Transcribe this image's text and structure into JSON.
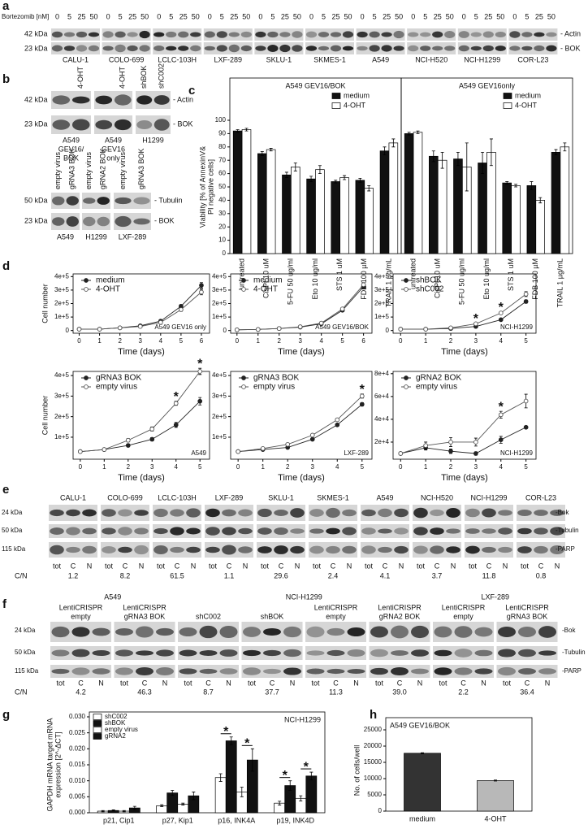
{
  "panel_labels": [
    "a",
    "b",
    "c",
    "d",
    "e",
    "f",
    "g",
    "h"
  ],
  "blot_a": {
    "treatment_label": "Bortezomib [nM]",
    "doses": [
      "0",
      "5",
      "25",
      "50"
    ],
    "size_markers": [
      "42 kDa",
      "23 kDa"
    ],
    "proteins": [
      "- Actin",
      "- BOK"
    ],
    "cell_lines": [
      "CALU-1",
      "COLO-699",
      "LCLC-103H",
      "LXF-289",
      "SKLU-1",
      "SKMES-1",
      "A549",
      "NCI-H520",
      "NCI-H1299",
      "COR-L23"
    ]
  },
  "blot_b": {
    "top": {
      "lanes": [
        null,
        "4-OHT",
        null,
        "4-OHT",
        "shBOK",
        "shC002"
      ],
      "size_markers": [
        "42 kDa",
        "23 kDa"
      ],
      "proteins": [
        "- Actin",
        "- BOK"
      ],
      "groups": [
        [
          "A549",
          "GEV16/",
          "BOK"
        ],
        [
          "A549",
          "GEV16",
          "only"
        ],
        [
          "H1299"
        ]
      ]
    },
    "bottom": {
      "lanes": [
        "empty virus",
        "gRNA3 BOK",
        "empty virus",
        "gRNA2 BOK",
        "empty virus",
        "gRNA3 BOK"
      ],
      "size_markers": [
        "50 kDa",
        "23 kDa"
      ],
      "proteins": [
        "- Tubulin",
        "- BOK"
      ],
      "groups": [
        "A549",
        "H1299",
        "LXF-289"
      ]
    }
  },
  "blot_e": {
    "size_markers": [
      "24 kDa",
      "50 kDa",
      "115 kDa"
    ],
    "proteins": [
      "-Bok",
      "-Tubulin",
      "-PARP"
    ],
    "cell_lines": [
      "CALU-1",
      "COLO-699",
      "LCLC-103H",
      "LXF-289",
      "SKLU-1",
      "SKMES-1",
      "A549",
      "NCI-H520",
      "NCI-H1299",
      "COR-L23"
    ],
    "fractions": [
      "tot",
      "C",
      "N"
    ],
    "ratio_label": "C/N",
    "ratios": [
      "1.2",
      "8.2",
      "61.5",
      "1.1",
      "29.6",
      "2.4",
      "4.1",
      "3.7",
      "11.8",
      "0.8"
    ]
  },
  "blot_f": {
    "size_markers": [
      "24 kDa",
      "50 kDa",
      "115 kDa"
    ],
    "proteins": [
      "-Bok",
      "-Tubulin",
      "-PARP"
    ],
    "headers": [
      "A549",
      "NCI-H1299",
      "LXF-289"
    ],
    "subgroups": [
      [
        "LentiCRISPR",
        "empty"
      ],
      [
        "LentiCRISPR",
        "gRNA3 BOK"
      ],
      [
        "shC002"
      ],
      [
        "shBOK"
      ],
      [
        "LentiCRISPR",
        "empty"
      ],
      [
        "LentiCRISPR",
        "gRNA2 BOK"
      ],
      [
        "LentiCRISPR",
        "empty"
      ],
      [
        "LentiCRISPR",
        "gRNA3 BOK"
      ]
    ],
    "fractions": [
      "tot",
      "C",
      "N"
    ],
    "ratio_label": "C/N",
    "ratios": [
      "4.2",
      "46.3",
      "8.7",
      "37.7",
      "11.3",
      "39.0",
      "2.2",
      "36.4"
    ]
  },
  "chart_data": [
    {
      "type": "bar",
      "title": "A549 GEV16/BOK",
      "y_label": [
        "Viability [% of AnnexinV&",
        "PI negative cells]"
      ],
      "categories": [
        "untreated",
        "CisPt 10 uM",
        "5-FU 50 ug/ml",
        "Eto 10 ug/ml",
        "STS 1 uM",
        "FDB 100 µM",
        "TRAIL 1 µg/mL"
      ],
      "series": [
        {
          "name": "medium",
          "color": "#111111",
          "values": [
            92,
            75,
            59,
            56,
            54,
            55,
            77
          ],
          "errors": [
            1,
            1.5,
            2,
            2,
            1,
            1.5,
            3
          ]
        },
        {
          "name": "4-OHT",
          "color": "#ffffff",
          "values": [
            93,
            78,
            65,
            63,
            57,
            49,
            83
          ],
          "errors": [
            1,
            1,
            3,
            3,
            1.5,
            2,
            3
          ]
        }
      ],
      "ylim": [
        0,
        100
      ],
      "yticks": [
        0,
        10,
        20,
        30,
        40,
        50,
        60,
        70,
        80,
        90,
        100
      ],
      "legend": "upper right"
    },
    {
      "type": "bar",
      "title": "A549 GEV16only",
      "categories": [
        "untreated",
        "CisPt 10 uM",
        "5-FU 50 ug/ml",
        "Eto 10 ug/ml",
        "STS 1 uM",
        "FDB 100 µM",
        "TRAIL 1 µg/mL"
      ],
      "series": [
        {
          "name": "medium",
          "color": "#111111",
          "values": [
            90,
            73,
            71,
            68,
            53,
            51,
            76
          ],
          "errors": [
            1,
            4,
            5,
            8,
            1,
            3,
            2
          ]
        },
        {
          "name": "4-OHT",
          "color": "#ffffff",
          "values": [
            91,
            70,
            65,
            76,
            51,
            40,
            80
          ],
          "errors": [
            1,
            6,
            18,
            10,
            1,
            2,
            3
          ]
        }
      ],
      "ylim": [
        0,
        100
      ],
      "legend": "upper right"
    },
    {
      "type": "line",
      "y_label": "Cell number",
      "x_label": "Time (days)",
      "annotation": "A549 GEV16 only",
      "x": [
        0,
        1,
        2,
        3,
        4,
        5,
        6
      ],
      "series": [
        {
          "name": "medium",
          "color": "#222222",
          "marker": "filled",
          "values": [
            10000,
            10000,
            20000,
            35000,
            70000,
            180000,
            335000
          ],
          "errors": [
            2000,
            2000,
            3000,
            4000,
            6000,
            12000,
            20000
          ]
        },
        {
          "name": "4-OHT",
          "color": "#555555",
          "marker": "open",
          "values": [
            10000,
            10000,
            20000,
            30000,
            60000,
            155000,
            285000
          ],
          "errors": [
            2000,
            2000,
            3000,
            4000,
            6000,
            12000,
            20000
          ]
        }
      ],
      "xlim": [
        -0.3,
        6.4
      ],
      "ylim": [
        -20000,
        420000
      ],
      "xticks": [
        0,
        1,
        2,
        3,
        4,
        5,
        6
      ],
      "yticks": [
        0,
        {
          "value": 100000,
          "label": "1e+5"
        },
        {
          "value": 200000,
          "label": "2e+5"
        },
        {
          "value": 300000,
          "label": "3e+5"
        },
        {
          "value": 400000,
          "label": "4e+5"
        }
      ],
      "legend": "upper left"
    },
    {
      "type": "line",
      "x_label": "Time (days)",
      "annotation": "A549 GEV16/BOK",
      "x": [
        0,
        1,
        2,
        3,
        4,
        5,
        6
      ],
      "series": [
        {
          "name": "medium",
          "color": "#222222",
          "marker": "filled",
          "values": [
            5000,
            8000,
            15000,
            25000,
            50000,
            150000,
            325000
          ],
          "errors": [
            2000,
            2000,
            3000,
            4000,
            6000,
            10000,
            15000
          ]
        },
        {
          "name": "4-OHT",
          "color": "#555555",
          "marker": "open",
          "values": [
            5000,
            8000,
            15000,
            28000,
            55000,
            160000,
            340000
          ],
          "errors": [
            2000,
            2000,
            3000,
            4000,
            6000,
            10000,
            15000
          ]
        }
      ],
      "xlim": [
        -0.3,
        6.4
      ],
      "ylim": [
        -20000,
        420000
      ],
      "xticks": [
        0,
        1,
        2,
        3,
        4,
        5,
        6
      ],
      "yticks": [
        0,
        {
          "value": 100000,
          "label": "1e+5"
        },
        {
          "value": 200000,
          "label": "2e+5"
        },
        {
          "value": 300000,
          "label": "3e+5"
        },
        {
          "value": 400000,
          "label": "4e+5"
        }
      ],
      "legend": "upper left"
    },
    {
      "type": "line",
      "x_label": "Time (days)",
      "annotation": "NCI-H1299",
      "x": [
        0,
        1,
        2,
        3,
        4,
        5
      ],
      "series": [
        {
          "name": "shBOK",
          "color": "#222222",
          "marker": "filled",
          "values": [
            10000,
            10000,
            15000,
            30000,
            80000,
            215000
          ],
          "errors": [
            2000,
            2000,
            3000,
            4000,
            6000,
            12000
          ]
        },
        {
          "name": "shC002",
          "color": "#555555",
          "marker": "open",
          "values": [
            10000,
            10000,
            20000,
            50000,
            130000,
            270000
          ],
          "errors": [
            2000,
            2000,
            3000,
            4000,
            8000,
            18000
          ]
        }
      ],
      "xlim": [
        -0.3,
        5.4
      ],
      "ylim": [
        -20000,
        420000
      ],
      "xticks": [
        0,
        1,
        2,
        3,
        4,
        5
      ],
      "yticks": [
        0,
        {
          "value": 100000,
          "label": "1e+5"
        },
        {
          "value": 200000,
          "label": "2e+5"
        },
        {
          "value": 300000,
          "label": "3e+5"
        },
        {
          "value": 400000,
          "label": "4e+5"
        }
      ],
      "legend": "upper left",
      "annotations": [
        {
          "text": "*",
          "x": 3
        },
        {
          "text": "*",
          "x": 4
        }
      ]
    },
    {
      "type": "line",
      "y_label": "Cell number",
      "x_label": "Time (days)",
      "annotation": "A549",
      "x": [
        0,
        1,
        2,
        3,
        4,
        5
      ],
      "series": [
        {
          "name": "gRNA3 BOK",
          "color": "#222222",
          "marker": "filled",
          "values": [
            30000,
            40000,
            60000,
            90000,
            160000,
            275000
          ],
          "errors": [
            3000,
            4000,
            6000,
            8000,
            12000,
            18000
          ]
        },
        {
          "name": "empty virus",
          "color": "#555555",
          "marker": "open",
          "values": [
            30000,
            40000,
            85000,
            140000,
            265000,
            420000
          ],
          "errors": [
            3000,
            4000,
            8000,
            10000,
            10000,
            15000
          ]
        }
      ],
      "xlim": [
        -0.3,
        5.4
      ],
      "ylim": [
        -7000,
        420000
      ],
      "xticks": [
        0,
        1,
        2,
        3,
        4,
        5
      ],
      "yticks": [
        {
          "value": 100000,
          "label": "1e+5"
        },
        {
          "value": 200000,
          "label": "2e+5"
        },
        {
          "value": 300000,
          "label": "3e+5"
        },
        {
          "value": 400000,
          "label": "4e+5"
        }
      ],
      "legend": "upper left",
      "annotations": [
        {
          "text": "*",
          "x": 4
        },
        {
          "text": "*",
          "x": 5
        }
      ]
    },
    {
      "type": "line",
      "x_label": "Time (days)",
      "annotation": "LXF-289",
      "x": [
        0,
        1,
        2,
        3,
        4,
        5
      ],
      "series": [
        {
          "name": "gRNA3 BOK",
          "color": "#222222",
          "marker": "filled",
          "values": [
            30000,
            40000,
            50000,
            90000,
            160000,
            260000
          ],
          "errors": [
            2000,
            3000,
            4000,
            5000,
            6000,
            8000
          ]
        },
        {
          "name": "empty virus",
          "color": "#555555",
          "marker": "open",
          "values": [
            30000,
            45000,
            65000,
            110000,
            185000,
            300000
          ],
          "errors": [
            2000,
            3000,
            4000,
            5000,
            6000,
            10000
          ]
        }
      ],
      "xlim": [
        -0.3,
        5.4
      ],
      "ylim": [
        -7000,
        420000
      ],
      "xticks": [
        0,
        1,
        2,
        3,
        4,
        5
      ],
      "yticks": [
        {
          "value": 100000,
          "label": "1e+5"
        },
        {
          "value": 200000,
          "label": "2e+5"
        },
        {
          "value": 300000,
          "label": "3e+5"
        },
        {
          "value": 400000,
          "label": "4e+5"
        }
      ],
      "legend": "upper left",
      "annotations": [
        {
          "text": "*",
          "x": 5
        }
      ]
    },
    {
      "type": "line",
      "x_label": "Time (days)",
      "annotation": "NCI-H1299",
      "x": [
        0,
        1,
        2,
        3,
        4,
        5
      ],
      "series": [
        {
          "name": "gRNA2 BOK",
          "color": "#222222",
          "marker": "filled",
          "values": [
            10000,
            15000,
            12000,
            10000,
            22000,
            33000
          ],
          "errors": [
            1000,
            2000,
            2000,
            1500,
            3000,
            1000
          ]
        },
        {
          "name": "empty virus",
          "color": "#555555",
          "marker": "open",
          "values": [
            10000,
            17000,
            20000,
            20000,
            44000,
            56000
          ],
          "errors": [
            1000,
            3000,
            4000,
            3500,
            3000,
            6000
          ]
        }
      ],
      "xlim": [
        -0.3,
        5.4
      ],
      "ylim": [
        5000,
        82000
      ],
      "xticks": [
        0,
        1,
        2,
        3,
        4,
        5
      ],
      "yticks": [
        {
          "value": 20000,
          "label": "2e+4"
        },
        {
          "value": 40000,
          "label": "4e+4"
        },
        {
          "value": 60000,
          "label": "6e+4"
        },
        {
          "value": 80000,
          "label": "8e+4"
        }
      ],
      "legend": "upper left",
      "annotations": [
        {
          "text": "*",
          "x": 4
        }
      ]
    },
    {
      "type": "bar",
      "label": "NCI-H1299",
      "y_label": [
        "GAPDH mRNA target mRNA",
        "expression [2^-ΔCT]"
      ],
      "categories": [
        "p21, Cip1",
        "p27, Kip1",
        "p16, INK4A",
        "p19, INK4D"
      ],
      "series": [
        {
          "name": "shC002",
          "color": "#ffffff",
          "values": [
            0.0005,
            0.0022,
            0.011,
            0.003
          ],
          "errors": [
            0.0002,
            0.0003,
            0.0012,
            0.0006
          ]
        },
        {
          "name": "shBOK",
          "color": "#111111",
          "values": [
            0.0007,
            0.0062,
            0.0225,
            0.0085
          ],
          "errors": [
            0.0002,
            0.0008,
            0.0012,
            0.0015
          ]
        },
        {
          "name": "empty virus",
          "color": "#ffffff",
          "values": [
            0.0005,
            0.0027,
            0.0065,
            0.0045
          ],
          "errors": [
            0.0002,
            0.0003,
            0.0015,
            0.0008
          ]
        },
        {
          "name": "gRNA2",
          "color": "#111111",
          "values": [
            0.0015,
            0.0053,
            0.0165,
            0.0115
          ],
          "errors": [
            0.0005,
            0.0012,
            0.0035,
            0.0012
          ]
        }
      ],
      "ylim": [
        0,
        0.03
      ],
      "yticks": [
        {
          "value": 0,
          "label": "0.000"
        },
        {
          "value": 0.005,
          "label": "0.005"
        },
        {
          "value": 0.01,
          "label": "0.010"
        },
        {
          "value": 0.015,
          "label": "0.015"
        },
        {
          "value": 0.02,
          "label": "0.020"
        },
        {
          "value": 0.025,
          "label": "0.025"
        },
        {
          "value": 0.03,
          "label": "0.030"
        }
      ],
      "legend": "upper left",
      "annotations": [
        {
          "text": "*",
          "category": 2,
          "series": 1
        },
        {
          "text": "*",
          "category": 2,
          "series": 3
        },
        {
          "text": "*",
          "category": 3,
          "series": 1
        },
        {
          "text": "*",
          "category": 3,
          "series": 3
        }
      ]
    },
    {
      "type": "bar",
      "title": "A549 GEV16/BOK",
      "y_label": "No. of cells/well",
      "categories": [
        "medium",
        "4-OHT"
      ],
      "values": [
        17800,
        9400
      ],
      "errors": [
        150,
        150
      ],
      "colors": [
        "#333333",
        "#b8b8b8"
      ],
      "ylim": [
        0,
        25000
      ],
      "yticks": [
        0,
        5000,
        10000,
        15000,
        20000,
        25000
      ]
    }
  ]
}
